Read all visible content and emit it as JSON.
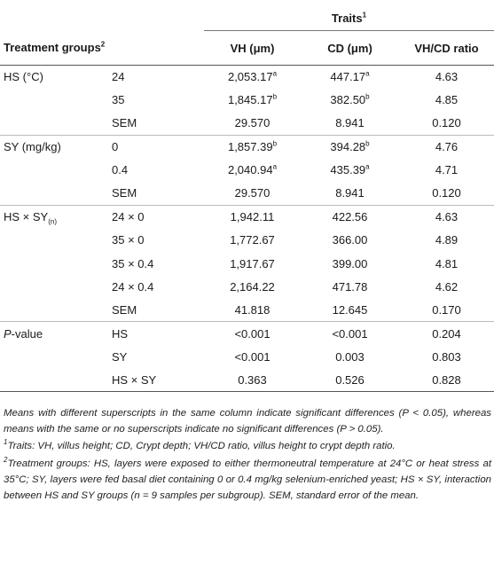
{
  "header": {
    "traits": "Traits",
    "traits_sup": "1",
    "group_col": "Treatment groups",
    "group_col_sup": "2",
    "col_vh": "VH (μm)",
    "col_cd": "CD (μm)",
    "col_ratio": "VH/CD ratio"
  },
  "rows": [
    {
      "group": "HS (°C)",
      "sub": "24",
      "vh": "2,053.17",
      "vh_sup": "a",
      "cd": "447.17",
      "cd_sup": "a",
      "ratio": "4.63"
    },
    {
      "group": "",
      "sub": "35",
      "vh": "1,845.17",
      "vh_sup": "b",
      "cd": "382.50",
      "cd_sup": "b",
      "ratio": "4.85"
    },
    {
      "group": "",
      "sub": "SEM",
      "vh": "29.570",
      "vh_sup": "",
      "cd": "8.941",
      "cd_sup": "",
      "ratio": "0.120"
    },
    {
      "group": "SY (mg/kg)",
      "sub": "0",
      "vh": "1,857.39",
      "vh_sup": "b",
      "cd": "394.28",
      "cd_sup": "b",
      "ratio": "4.76"
    },
    {
      "group": "",
      "sub": "0.4",
      "vh": "2,040.94",
      "vh_sup": "a",
      "cd": "435.39",
      "cd_sup": "a",
      "ratio": "4.71"
    },
    {
      "group": "",
      "sub": "SEM",
      "vh": "29.570",
      "vh_sup": "",
      "cd": "8.941",
      "cd_sup": "",
      "ratio": "0.120"
    },
    {
      "group": "HS × SY",
      "group_sub": "(n)",
      "sub": "24 × 0",
      "vh": "1,942.11",
      "vh_sup": "",
      "cd": "422.56",
      "cd_sup": "",
      "ratio": "4.63"
    },
    {
      "group": "",
      "sub": "35 × 0",
      "vh": "1,772.67",
      "vh_sup": "",
      "cd": "366.00",
      "cd_sup": "",
      "ratio": "4.89"
    },
    {
      "group": "",
      "sub": "35 × 0.4",
      "vh": "1,917.67",
      "vh_sup": "",
      "cd": "399.00",
      "cd_sup": "",
      "ratio": "4.81"
    },
    {
      "group": "",
      "sub": "24 × 0.4",
      "vh": "2,164.22",
      "vh_sup": "",
      "cd": "471.78",
      "cd_sup": "",
      "ratio": "4.62"
    },
    {
      "group": "",
      "sub": "SEM",
      "vh": "41.818",
      "vh_sup": "",
      "cd": "12.645",
      "cd_sup": "",
      "ratio": "0.170"
    },
    {
      "group_italic": "P",
      "group": "-value",
      "sub": "HS",
      "vh": "<0.001",
      "vh_sup": "",
      "cd": "<0.001",
      "cd_sup": "",
      "ratio": "0.204"
    },
    {
      "group": "",
      "sub": "SY",
      "vh": "<0.001",
      "vh_sup": "",
      "cd": "0.003",
      "cd_sup": "",
      "ratio": "0.803"
    },
    {
      "group": "",
      "sub": "HS × SY",
      "vh": "0.363",
      "vh_sup": "",
      "cd": "0.526",
      "cd_sup": "",
      "ratio": "0.828"
    }
  ],
  "footnotes": {
    "note_main": "Means with different superscripts in the same column indicate significant differences (P < 0.05), whereas means with the same or no superscripts indicate no significant differences (P > 0.05).",
    "note1_mark": "1",
    "note1": "Traits: VH, villus height; CD, Crypt depth; VH/CD ratio, villus height to crypt depth ratio.",
    "note2_mark": "2",
    "note2": "Treatment groups: HS, layers were exposed to either thermoneutral temperature at 24°C or heat stress at 35°C; SY, layers were fed basal diet containing 0 or 0.4 mg/kg selenium-enriched yeast; HS × SY, interaction between HS and SY groups (n = 9 samples per subgroup). SEM, standard error of the mean."
  }
}
